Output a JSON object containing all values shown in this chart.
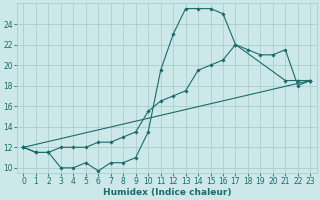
{
  "xlabel": "Humidex (Indice chaleur)",
  "ylabel": "",
  "bg_color": "#cce8e8",
  "grid_color": "#aacece",
  "line_color": "#1a6b6b",
  "xlim": [
    -0.5,
    23.5
  ],
  "ylim": [
    9.5,
    26.0
  ],
  "xticks": [
    0,
    1,
    2,
    3,
    4,
    5,
    6,
    7,
    8,
    9,
    10,
    11,
    12,
    13,
    14,
    15,
    16,
    17,
    18,
    19,
    20,
    21,
    22,
    23
  ],
  "yticks": [
    10,
    12,
    14,
    16,
    18,
    20,
    22,
    24
  ],
  "series1_x": [
    0,
    1,
    2,
    3,
    4,
    5,
    6,
    7,
    8,
    9,
    10,
    11,
    12,
    13,
    14,
    15,
    16,
    17,
    21,
    22,
    23
  ],
  "series1_y": [
    12,
    11.5,
    11.5,
    10,
    10,
    10.5,
    9.7,
    10.5,
    10.5,
    11.0,
    13.5,
    19.5,
    23.0,
    25.5,
    25.5,
    25.5,
    25.0,
    22.0,
    18.5,
    18.5,
    18.5
  ],
  "series2_x": [
    0,
    1,
    2,
    3,
    4,
    5,
    6,
    7,
    8,
    9,
    10,
    11,
    12,
    13,
    14,
    15,
    16,
    17,
    18,
    19,
    20,
    21,
    22,
    23
  ],
  "series2_y": [
    12,
    11.5,
    11.5,
    12.0,
    12.0,
    12.0,
    12.5,
    12.5,
    13.0,
    13.5,
    15.5,
    16.5,
    17.0,
    17.5,
    19.5,
    20.0,
    20.5,
    22.0,
    21.5,
    21.0,
    21.0,
    21.5,
    18.0,
    18.5
  ],
  "series3_x": [
    0,
    23
  ],
  "series3_y": [
    12,
    18.5
  ]
}
